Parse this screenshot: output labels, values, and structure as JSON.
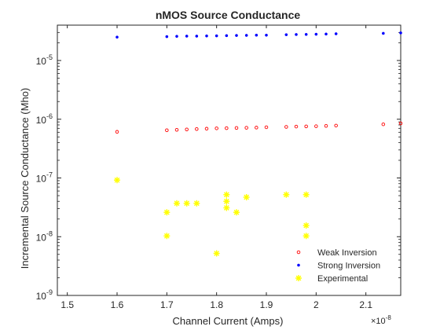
{
  "chart_data": {
    "type": "scatter",
    "title": "nMOS Source Conductance",
    "xlabel": "Channel Current (Amps)",
    "ylabel": "Incremental Source Conductance (Mho)",
    "x_scale": "linear",
    "y_scale": "log",
    "x_exponent_label": "×10",
    "x_exponent_power": "-8",
    "xlim": [
      1.48,
      2.17
    ],
    "ylim": [
      1e-09,
      4e-05
    ],
    "xticks": [
      1.5,
      1.6,
      1.7,
      1.8,
      1.9,
      2.0,
      2.1
    ],
    "xtick_labels": [
      "1.5",
      "1.6",
      "1.7",
      "1.8",
      "1.9",
      "2",
      "2.1"
    ],
    "yticks": [
      1e-09,
      1e-08,
      1e-07,
      1e-06,
      1e-05
    ],
    "ytick_bases": [
      "10",
      "10",
      "10",
      "10",
      "10"
    ],
    "ytick_exponents": [
      "-9",
      "-8",
      "-7",
      "-6",
      "-5"
    ],
    "grid": false,
    "legend_position": "bottom-right",
    "series": [
      {
        "name": "Weak Inversion",
        "marker": "circle",
        "color": "#ff0000",
        "x": [
          1.6,
          1.7,
          1.72,
          1.74,
          1.76,
          1.78,
          1.8,
          1.82,
          1.84,
          1.86,
          1.88,
          1.9,
          1.94,
          1.96,
          1.98,
          2.0,
          2.02,
          2.04,
          2.135,
          2.17
        ],
        "y": [
          6.1e-07,
          6.5e-07,
          6.6e-07,
          6.7e-07,
          6.8e-07,
          6.9e-07,
          7e-07,
          7.05e-07,
          7.1e-07,
          7.15e-07,
          7.2e-07,
          7.3e-07,
          7.4e-07,
          7.5e-07,
          7.55e-07,
          7.6e-07,
          7.7e-07,
          7.8e-07,
          8.2e-07,
          8.5e-07
        ]
      },
      {
        "name": "Strong Inversion",
        "marker": "dot",
        "color": "#0000ff",
        "x": [
          1.6,
          1.7,
          1.72,
          1.74,
          1.76,
          1.78,
          1.8,
          1.82,
          1.84,
          1.86,
          1.88,
          1.9,
          1.94,
          1.96,
          1.98,
          2.0,
          2.02,
          2.04,
          2.135,
          2.17
        ],
        "y": [
          2.5e-05,
          2.55e-05,
          2.58e-05,
          2.6e-05,
          2.6e-05,
          2.62e-05,
          2.63e-05,
          2.65e-05,
          2.67e-05,
          2.68e-05,
          2.7e-05,
          2.7e-05,
          2.75e-05,
          2.77e-05,
          2.78e-05,
          2.8e-05,
          2.82e-05,
          2.85e-05,
          2.9e-05,
          2.95e-05
        ]
      },
      {
        "name": "Experimental",
        "marker": "asterisk",
        "color": "#ffff00",
        "x": [
          1.6,
          1.7,
          1.7,
          1.72,
          1.74,
          1.76,
          1.8,
          1.82,
          1.82,
          1.82,
          1.84,
          1.86,
          1.94,
          1.98,
          1.98,
          1.98
        ],
        "y": [
          9.2e-08,
          2.6e-08,
          1.03e-08,
          3.7e-08,
          3.7e-08,
          3.7e-08,
          5.2e-09,
          5.2e-08,
          4e-08,
          3.1e-08,
          2.6e-08,
          4.7e-08,
          5.2e-08,
          5.2e-08,
          1.55e-08,
          1.03e-08
        ]
      }
    ]
  }
}
